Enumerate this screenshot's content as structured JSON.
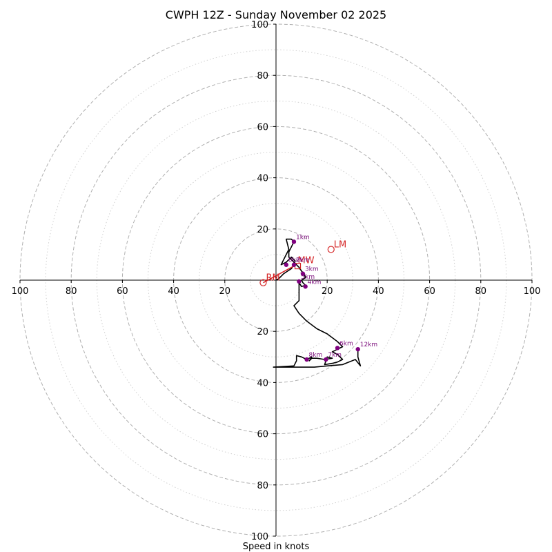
{
  "chart_data": {
    "type": "hodograph",
    "title": "CWPH 12Z - Sunday November 02 2025",
    "xlabel": "Speed in knots",
    "units": "knots",
    "range": [
      -100,
      100
    ],
    "ring_major": [
      20,
      40,
      60,
      80,
      100
    ],
    "ring_minor": [
      10,
      30,
      50,
      70,
      90
    ],
    "x_ticks": [
      "100",
      "80",
      "60",
      "40",
      "20",
      "20",
      "40",
      "60",
      "80",
      "100"
    ],
    "x_tick_values": [
      -100,
      -80,
      -60,
      -40,
      -20,
      20,
      40,
      60,
      80,
      100
    ],
    "y_ticks": [
      "100",
      "80",
      "60",
      "40",
      "20",
      "20",
      "40",
      "60",
      "80",
      "100"
    ],
    "y_tick_values": [
      100,
      80,
      60,
      40,
      20,
      -20,
      -40,
      -60,
      -80,
      -100
    ],
    "grid": true,
    "trace": [
      [
        0,
        0
      ],
      [
        1,
        0.5
      ],
      [
        2,
        1.5
      ],
      [
        3,
        2.5
      ],
      [
        4.5,
        3.5
      ],
      [
        6,
        4.5
      ],
      [
        7,
        6
      ],
      [
        7.5,
        7.5
      ],
      [
        6,
        9
      ],
      [
        4,
        7
      ],
      [
        2,
        6
      ],
      [
        4,
        10
      ],
      [
        5,
        12
      ],
      [
        4.5,
        14
      ],
      [
        4,
        16
      ],
      [
        6,
        16
      ],
      [
        7,
        15
      ],
      [
        6,
        13
      ],
      [
        5,
        11
      ],
      [
        5,
        9
      ],
      [
        7,
        7
      ],
      [
        8,
        6
      ],
      [
        9,
        5
      ],
      [
        10,
        3.5
      ],
      [
        11,
        2.5
      ],
      [
        11.5,
        1
      ],
      [
        10,
        0
      ],
      [
        10.5,
        -1
      ],
      [
        11.5,
        -2
      ],
      [
        10,
        -2.5
      ],
      [
        9,
        -1
      ],
      [
        9,
        -3
      ],
      [
        9,
        -5
      ],
      [
        9,
        -8
      ],
      [
        7,
        -10
      ],
      [
        9,
        -13
      ],
      [
        12,
        -16
      ],
      [
        16,
        -19
      ],
      [
        20,
        -21
      ],
      [
        24,
        -24
      ],
      [
        26,
        -26
      ],
      [
        24,
        -27
      ],
      [
        22,
        -28
      ],
      [
        24,
        -29
      ],
      [
        26,
        -31
      ],
      [
        24,
        -32
      ],
      [
        22,
        -32.5
      ],
      [
        19,
        -33
      ],
      [
        20,
        -30
      ],
      [
        22,
        -30.5
      ],
      [
        19,
        -31
      ],
      [
        16,
        -30.5
      ],
      [
        14,
        -30.5
      ],
      [
        13,
        -31.5
      ],
      [
        14,
        -30
      ],
      [
        12,
        -31
      ],
      [
        10,
        -30
      ],
      [
        8,
        -29.5
      ],
      [
        8,
        -31.5
      ],
      [
        7,
        -33.5
      ],
      [
        -1,
        -34
      ],
      [
        4,
        -34
      ],
      [
        10,
        -34
      ],
      [
        15,
        -34
      ],
      [
        20,
        -33.5
      ],
      [
        26,
        -33
      ],
      [
        31,
        -31
      ],
      [
        33,
        -33.5
      ],
      [
        32,
        -30
      ],
      [
        32,
        -27
      ]
    ],
    "height_markers": [
      {
        "label": "1km",
        "u": 7,
        "v": 15
      },
      {
        "label": "2km",
        "u": 7,
        "v": 6
      },
      {
        "label": "0km",
        "u": 4,
        "v": 6
      },
      {
        "label": "3km",
        "u": 10.5,
        "v": 2.5
      },
      {
        "label": "5km",
        "u": 9,
        "v": -0.5
      },
      {
        "label": "4km",
        "u": 11.5,
        "v": -2.5
      },
      {
        "label": "6km",
        "u": 24,
        "v": -26.5
      },
      {
        "label": "12km",
        "u": 32,
        "v": -27
      },
      {
        "label": "8km",
        "u": 12,
        "v": -31
      },
      {
        "label": "7km",
        "u": 19.5,
        "v": -31
      }
    ],
    "storm_motion": {
      "lm": {
        "label": "LM",
        "u": 21.5,
        "v": 12
      },
      "rm": {
        "label": "RM",
        "u": -5,
        "v": -1
      },
      "mw": {
        "label": "MW",
        "u": 8.5,
        "v": 5.5
      },
      "shear_vector": [
        [
          -5,
          -1
        ],
        [
          7,
          5.5
        ]
      ]
    },
    "colors": {
      "trace": "#000000",
      "marker": "#800080",
      "marker_label": "#7a0a7a",
      "motion": "#d62728",
      "grid": "#b0b0b0",
      "minor_grid": "#d0d0d0",
      "axes": "#000000"
    }
  }
}
